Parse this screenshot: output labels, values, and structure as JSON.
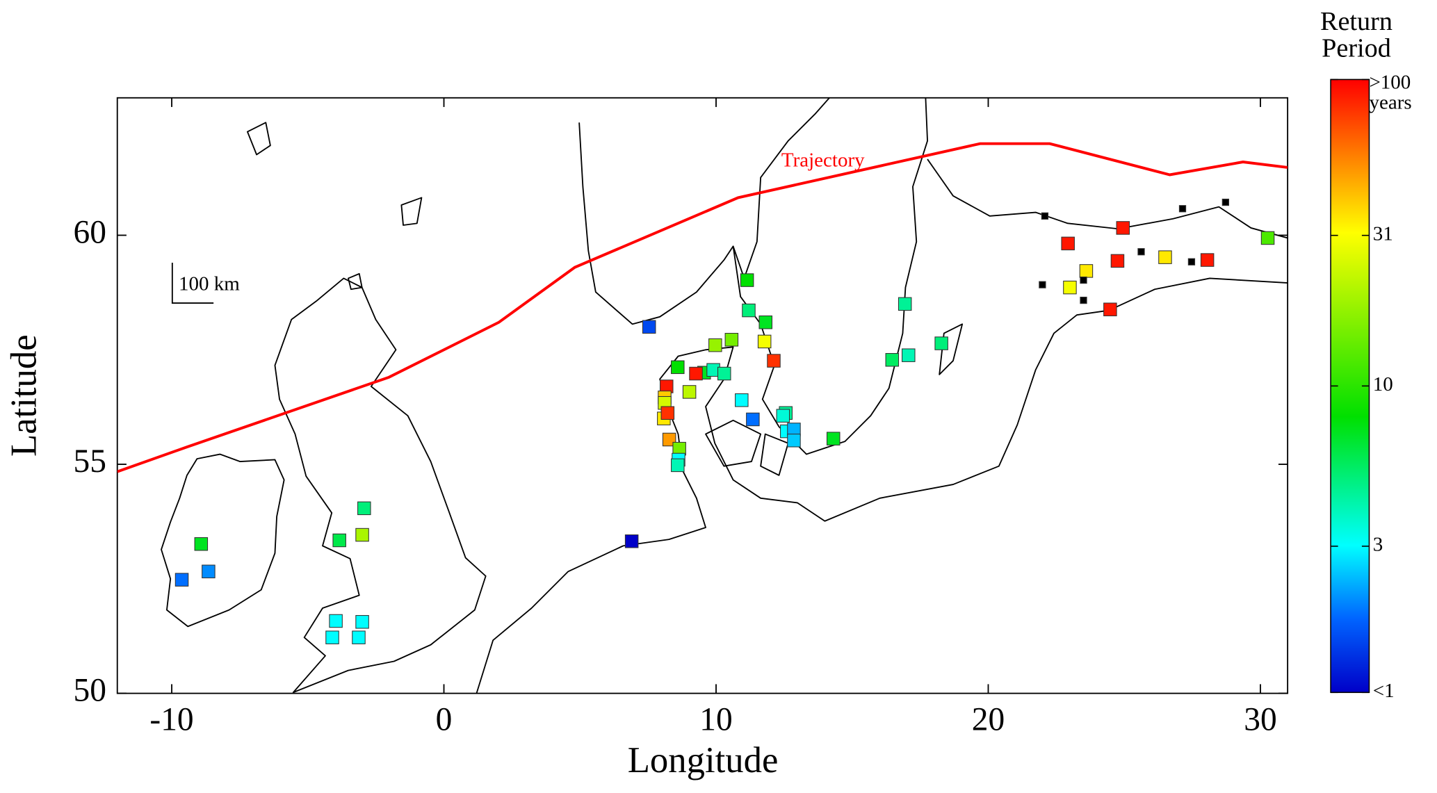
{
  "chart_data": {
    "type": "scatter",
    "xlabel": "Longitude",
    "ylabel": "Latitude",
    "xlim": [
      -12,
      31
    ],
    "ylim": [
      50,
      63
    ],
    "xticks": [
      -10,
      0,
      10,
      20,
      30
    ],
    "yticks": [
      50,
      55,
      60
    ],
    "scale_bar": "100 km",
    "x": [
      -8.92,
      -9.63,
      -8.65,
      -2.93,
      -3.84,
      -3.0,
      -3.97,
      -3.0,
      -4.1,
      -3.13,
      6.9,
      7.54,
      11.14,
      11.2,
      11.82,
      11.78,
      12.12,
      10.57,
      9.97,
      8.59,
      9.56,
      9.9,
      10.3,
      9.26,
      9.02,
      8.18,
      8.11,
      8.11,
      8.08,
      8.22,
      8.28,
      8.65,
      8.62,
      8.59,
      10.94,
      11.35,
      12.56,
      12.46,
      12.6,
      12.86,
      12.86,
      14.31,
      16.47,
      17.07,
      16.94,
      18.28,
      22.93,
      24.95,
      23.6,
      23.0,
      24.75,
      26.5,
      28.05,
      30.27,
      24.48,
      22.08,
      27.14,
      28.72,
      21.99,
      23.5,
      23.5,
      25.62,
      27.47
    ],
    "y": [
      53.26,
      52.48,
      52.66,
      54.04,
      53.34,
      53.46,
      51.58,
      51.56,
      51.22,
      51.22,
      53.32,
      58.0,
      59.02,
      58.36,
      58.1,
      57.68,
      57.26,
      57.72,
      57.6,
      57.12,
      57.0,
      57.06,
      56.98,
      56.98,
      56.58,
      56.7,
      56.46,
      56.34,
      56.0,
      56.12,
      55.54,
      55.34,
      55.1,
      54.98,
      56.4,
      55.98,
      56.12,
      56.06,
      55.72,
      55.76,
      55.52,
      55.56,
      57.28,
      57.38,
      58.5,
      57.64,
      59.82,
      60.16,
      59.22,
      58.86,
      59.44,
      59.52,
      59.46,
      59.94,
      58.38,
      60.42,
      60.58,
      60.72,
      58.92,
      59.02,
      58.58,
      59.64,
      59.42
    ],
    "values": [
      7,
      1.8,
      2,
      5,
      6,
      20,
      3,
      3,
      3,
      3,
      1,
      1.5,
      8,
      5,
      7,
      30,
      80,
      15,
      18,
      8,
      7,
      4,
      4.5,
      90,
      22,
      90,
      40,
      25,
      35,
      80,
      50,
      15,
      3,
      4,
      3,
      1.8,
      4.5,
      3.5,
      3,
      2.3,
      2.5,
      7,
      5.5,
      4,
      4.5,
      5,
      90,
      90,
      35,
      30,
      90,
      35,
      90,
      12,
      90,
      null,
      null,
      null,
      null,
      null,
      null,
      null,
      null
    ],
    "null_color": "#000000",
    "colorbar": {
      "title": "Return Period",
      "log": true,
      "clim": [
        1,
        100
      ],
      "ticks": [
        {
          "value": 1,
          "label": "<1"
        },
        3,
        10,
        31,
        {
          "value": 100,
          "label": ">100 years"
        }
      ],
      "colormap": [
        {
          "pos": 0,
          "color": "#0000c8"
        },
        {
          "pos": 0.12,
          "color": "#0064ff"
        },
        {
          "pos": 0.24,
          "color": "#00ffff"
        },
        {
          "pos": 0.45,
          "color": "#00e000"
        },
        {
          "pos": 0.75,
          "color": "#ffff00"
        },
        {
          "pos": 1,
          "color": "#ff0000"
        }
      ]
    },
    "lines": [
      {
        "name": "Trajectory",
        "color": "#ff0000",
        "x": [
          -12,
          -9.43,
          -2.02,
          2.02,
          4.81,
          10.81,
          19.7,
          22.26,
          26.67,
          29.36,
          31
        ],
        "y": [
          54.84,
          55.38,
          56.9,
          58.1,
          59.3,
          60.82,
          62.0,
          62.0,
          61.32,
          61.6,
          61.48
        ]
      }
    ]
  }
}
